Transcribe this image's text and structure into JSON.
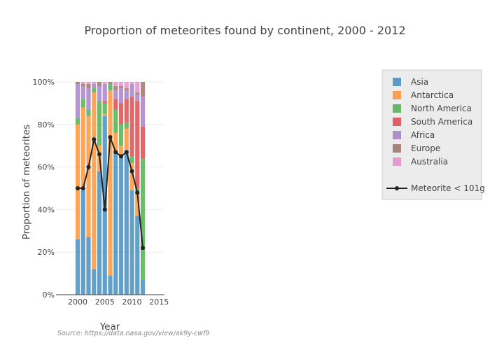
{
  "chart_data": {
    "type": "bar",
    "stacked": true,
    "title": "Proportion of meteorites found by continent, 2000 - 2012",
    "xlabel": "Year",
    "ylabel": "Proportion of meteorites",
    "xlim": [
      1996,
      2016
    ],
    "ylim": [
      0,
      1
    ],
    "x_ticks": [
      2000,
      2005,
      2010,
      2015
    ],
    "y_ticks": [
      0,
      0.2,
      0.4,
      0.6,
      0.8,
      1.0
    ],
    "y_tick_labels": [
      "0%",
      "20%",
      "40%",
      "60%",
      "80%",
      "100%"
    ],
    "grid": true,
    "legend_position": "top-right",
    "x": [
      2000,
      2001,
      2002,
      2003,
      2004,
      2005,
      2006,
      2007,
      2008,
      2009,
      2010,
      2011,
      2012
    ],
    "series": [
      {
        "name": "Asia",
        "color": "#1f77b4",
        "values": [
          0.26,
          0.49,
          0.27,
          0.12,
          0.58,
          0.84,
          0.09,
          0.67,
          0.65,
          0.68,
          0.49,
          0.37,
          0.07
        ]
      },
      {
        "name": "Antarctica",
        "color": "#ff7f0e",
        "values": [
          0.54,
          0.39,
          0.57,
          0.83,
          0.12,
          0.01,
          0.87,
          0.09,
          0.05,
          0.1,
          0.13,
          0.1,
          0.0
        ]
      },
      {
        "name": "North America",
        "color": "#2ca02c",
        "values": [
          0.03,
          0.04,
          0.03,
          0.02,
          0.21,
          0.05,
          0.03,
          0.11,
          0.1,
          0.03,
          0.03,
          0.03,
          0.57
        ]
      },
      {
        "name": "South America",
        "color": "#d62728",
        "values": [
          0.0,
          0.0,
          0.0,
          0.0,
          0.0,
          0.01,
          0.0,
          0.05,
          0.1,
          0.11,
          0.28,
          0.41,
          0.15
        ]
      },
      {
        "name": "Africa",
        "color": "#9467bd",
        "values": [
          0.16,
          0.06,
          0.1,
          0.02,
          0.07,
          0.08,
          0.0,
          0.04,
          0.07,
          0.04,
          0.06,
          0.03,
          0.14
        ]
      },
      {
        "name": "Europe",
        "color": "#8c564b",
        "values": [
          0.01,
          0.01,
          0.02,
          0.0,
          0.02,
          0.0,
          0.01,
          0.02,
          0.01,
          0.01,
          0.0,
          0.01,
          0.07
        ]
      },
      {
        "name": "Australia",
        "color": "#e377c2",
        "values": [
          0.0,
          0.01,
          0.01,
          0.01,
          0.0,
          0.01,
          0.0,
          0.02,
          0.02,
          0.03,
          0.01,
          0.05,
          0.0
        ]
      }
    ],
    "line_series": {
      "name": "Meteorite < 101g",
      "color": "#222222",
      "values": [
        0.5,
        0.5,
        0.6,
        0.73,
        0.66,
        0.4,
        0.74,
        0.67,
        0.65,
        0.67,
        0.58,
        0.48,
        0.22
      ]
    },
    "source": "Source: https://data.nasa.gov/view/ak9y-cwf9"
  }
}
